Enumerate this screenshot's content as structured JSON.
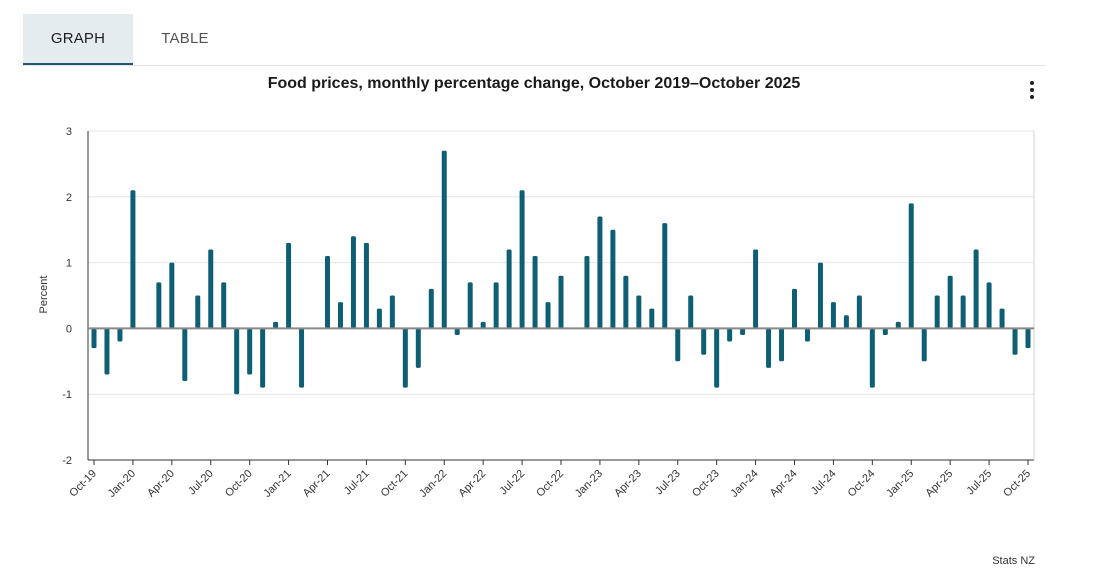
{
  "tabs": {
    "graph": "GRAPH",
    "table": "TABLE"
  },
  "source": "Stats NZ",
  "colors": {
    "bar": "#0e5f74",
    "zero_line": "#888888",
    "grid": "#e6e6e6",
    "tab_active_bg": "#e4ecf0",
    "tab_underline": "#1e5670"
  },
  "icons": {
    "menu": "more-vertical-icon"
  },
  "chart_data": {
    "type": "bar",
    "title": "Food prices, monthly percentage change, October 2019–October 2025",
    "xlabel": "",
    "ylabel": "Percent",
    "ylim": [
      -2,
      3
    ],
    "yticks": [
      3,
      2,
      1,
      0,
      -1,
      -2
    ],
    "tick_labels": [
      "Oct-19",
      "Jan-20",
      "Apr-20",
      "Jul-20",
      "Oct-20",
      "Jan-21",
      "Apr-21",
      "Jul-21",
      "Oct-21",
      "Jan-22",
      "Apr-22",
      "Jul-22",
      "Oct-22",
      "Jan-23",
      "Apr-23",
      "Jul-23",
      "Oct-23",
      "Jan-24",
      "Apr-24",
      "Jul-24",
      "Oct-24",
      "Jan-25",
      "Apr-25",
      "Jul-25",
      "Oct-25"
    ],
    "series": [
      {
        "name": "Food prices",
        "values": [
          -0.3,
          -0.7,
          -0.2,
          2.1,
          0,
          0.7,
          1.0,
          -0.8,
          0.5,
          1.2,
          0.7,
          -1.0,
          -0.7,
          -0.9,
          0.1,
          1.3,
          -0.9,
          0,
          1.1,
          0.4,
          1.4,
          1.3,
          0.3,
          0.5,
          -0.9,
          -0.6,
          0.6,
          2.7,
          -0.1,
          0.7,
          0.1,
          0.7,
          1.2,
          2.1,
          1.1,
          0.4,
          0.8,
          0,
          1.1,
          1.7,
          1.5,
          0.8,
          0.5,
          0.3,
          1.6,
          -0.5,
          0.5,
          -0.4,
          -0.9,
          -0.2,
          -0.1,
          1.2,
          -0.6,
          -0.5,
          0.6,
          -0.2,
          1.0,
          0.4,
          0.2,
          0.5,
          -0.9,
          -0.1,
          0.1,
          1.9,
          -0.5,
          0.5,
          0.8,
          0.5,
          1.2,
          0.7,
          0.3,
          -0.4,
          -0.3
        ]
      }
    ]
  }
}
